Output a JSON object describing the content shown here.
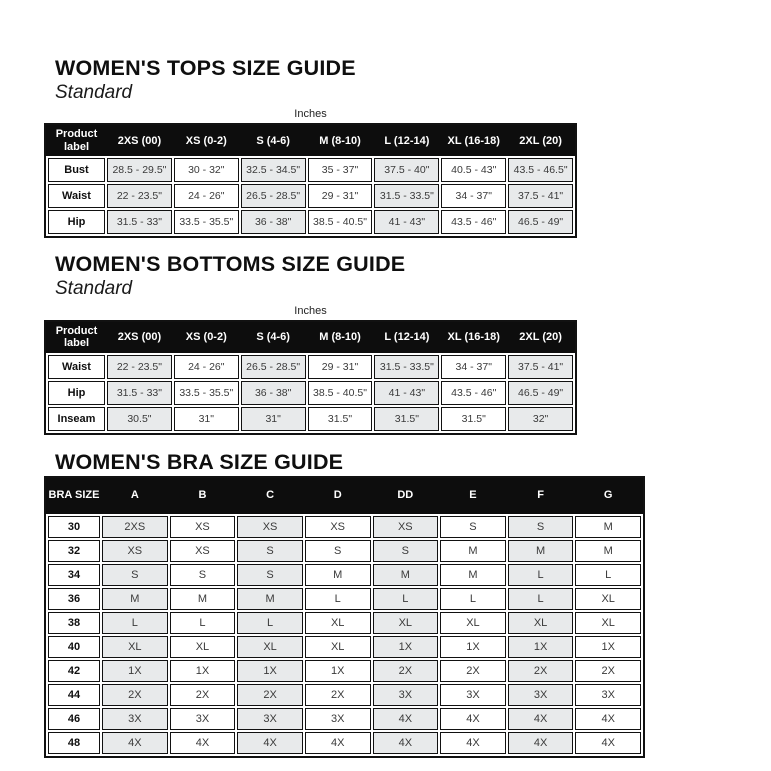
{
  "colors": {
    "header_bg": "#0d0d0d",
    "header_text": "#ffffff",
    "cell_shade": "#e8eaeb",
    "border": "#111111",
    "cell_text": "#3a3a3a"
  },
  "sections": {
    "tops": {
      "title": "WOMEN'S TOPS SIZE GUIDE",
      "subtitle": "Standard",
      "units_label": "Inches",
      "table": {
        "header": [
          "Product label",
          "2XS (00)",
          "XS (0-2)",
          "S (4-6)",
          "M (8-10)",
          "L (12-14)",
          "XL (16-18)",
          "2XL (20)"
        ],
        "rows": [
          {
            "label": "Bust",
            "values": [
              "28.5 - 29.5\"",
              "30 - 32\"",
              "32.5 - 34.5\"",
              "35 - 37\"",
              "37.5 - 40\"",
              "40.5 - 43\"",
              "43.5 - 46.5\""
            ]
          },
          {
            "label": "Waist",
            "values": [
              "22 - 23.5\"",
              "24 - 26\"",
              "26.5 - 28.5\"",
              "29 - 31\"",
              "31.5 - 33.5\"",
              "34 - 37\"",
              "37.5 - 41\""
            ]
          },
          {
            "label": "Hip",
            "values": [
              "31.5 - 33\"",
              "33.5 - 35.5\"",
              "36 - 38\"",
              "38.5 - 40.5\"",
              "41 - 43\"",
              "43.5 - 46\"",
              "46.5 - 49\""
            ]
          }
        ]
      }
    },
    "bottoms": {
      "title": "WOMEN'S BOTTOMS SIZE GUIDE",
      "subtitle": "Standard",
      "units_label": "Inches",
      "table": {
        "header": [
          "Product label",
          "2XS (00)",
          "XS (0-2)",
          "S (4-6)",
          "M (8-10)",
          "L (12-14)",
          "XL (16-18)",
          "2XL (20)"
        ],
        "rows": [
          {
            "label": "Waist",
            "values": [
              "22 - 23.5\"",
              "24 - 26\"",
              "26.5 - 28.5\"",
              "29 - 31\"",
              "31.5 - 33.5\"",
              "34 - 37\"",
              "37.5 - 41\""
            ]
          },
          {
            "label": "Hip",
            "values": [
              "31.5 - 33\"",
              "33.5 - 35.5\"",
              "36 - 38\"",
              "38.5 - 40.5\"",
              "41 - 43\"",
              "43.5 - 46\"",
              "46.5 - 49\""
            ]
          },
          {
            "label": "Inseam",
            "values": [
              "30.5\"",
              "31\"",
              "31\"",
              "31.5\"",
              "31.5\"",
              "31.5\"",
              "32\""
            ]
          }
        ]
      }
    },
    "bra": {
      "title": "WOMEN'S BRA SIZE GUIDE",
      "table": {
        "header": [
          "BRA SIZE",
          "A",
          "B",
          "C",
          "D",
          "DD",
          "E",
          "F",
          "G"
        ],
        "rows": [
          {
            "label": "30",
            "values": [
              "2XS",
              "XS",
              "XS",
              "XS",
              "XS",
              "S",
              "S",
              "M"
            ]
          },
          {
            "label": "32",
            "values": [
              "XS",
              "XS",
              "S",
              "S",
              "S",
              "M",
              "M",
              "M"
            ]
          },
          {
            "label": "34",
            "values": [
              "S",
              "S",
              "S",
              "M",
              "M",
              "M",
              "L",
              "L"
            ]
          },
          {
            "label": "36",
            "values": [
              "M",
              "M",
              "M",
              "L",
              "L",
              "L",
              "L",
              "XL"
            ]
          },
          {
            "label": "38",
            "values": [
              "L",
              "L",
              "L",
              "XL",
              "XL",
              "XL",
              "XL",
              "XL"
            ]
          },
          {
            "label": "40",
            "values": [
              "XL",
              "XL",
              "XL",
              "XL",
              "1X",
              "1X",
              "1X",
              "1X"
            ]
          },
          {
            "label": "42",
            "values": [
              "1X",
              "1X",
              "1X",
              "1X",
              "2X",
              "2X",
              "2X",
              "2X"
            ]
          },
          {
            "label": "44",
            "values": [
              "2X",
              "2X",
              "2X",
              "2X",
              "3X",
              "3X",
              "3X",
              "3X"
            ]
          },
          {
            "label": "46",
            "values": [
              "3X",
              "3X",
              "3X",
              "3X",
              "4X",
              "4X",
              "4X",
              "4X"
            ]
          },
          {
            "label": "48",
            "values": [
              "4X",
              "4X",
              "4X",
              "4X",
              "4X",
              "4X",
              "4X",
              "4X"
            ]
          }
        ]
      }
    }
  }
}
